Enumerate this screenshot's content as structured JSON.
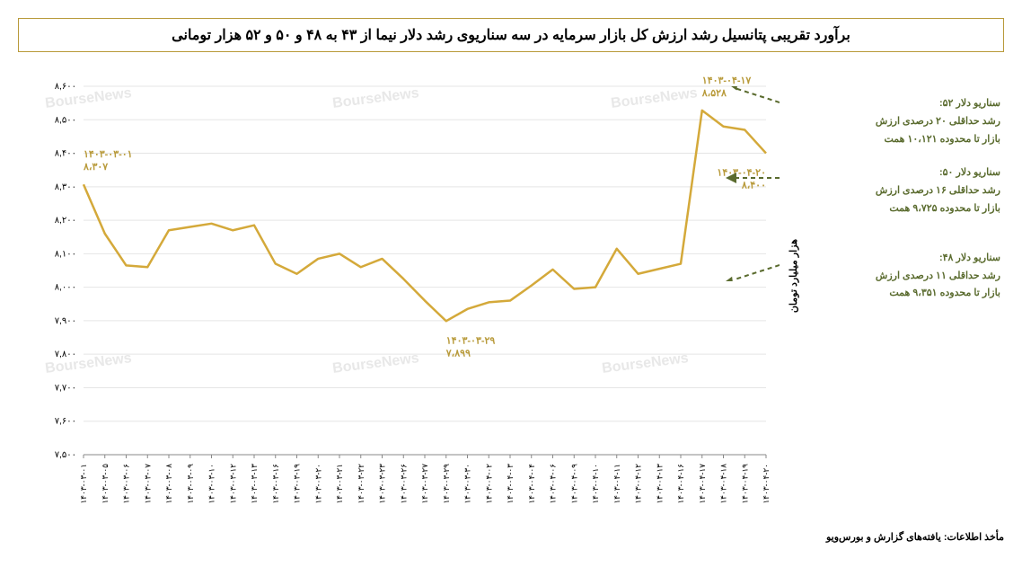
{
  "title": "برآورد تقریبی پتانسیل رشد ارزش کل بازار سرمایه در سه سناریوی رشد دلار نیما از ۴۳ به ۴۸ و ۵۰ و ۵۲ هزار تومانی",
  "y_axis_label": "هزار میلیارد تومان",
  "source_label": "مأخذ اطلاعات: یافته‌های گزارش و بورس‌ویو",
  "watermark": "BourseNews",
  "scenarios": [
    {
      "title": "سناریو دلار ۵۲:",
      "line1": "رشد حداقلی ۲۰ درصدی ارزش",
      "line2": "بازار تا محدوده ۱۰،۱۲۱ همت"
    },
    {
      "title": "سناریو دلار ۵۰:",
      "line1": "رشد حداقلی ۱۶ درصدی ارزش",
      "line2": "بازار تا محدوده ۹،۷۲۵ همت"
    },
    {
      "title": "سناریو دلار ۴۸:",
      "line1": "رشد حداقلی ۱۱ درصدی ارزش",
      "line2": "بازار تا محدوده ۹،۳۵۱ همت"
    }
  ],
  "chart": {
    "type": "line",
    "line_color": "#d4a93a",
    "line_width": 2.5,
    "grid_color": "#e5e5e5",
    "background_color": "#ffffff",
    "ylim": [
      7500,
      8600
    ],
    "ytick_step": 100,
    "x_labels": [
      "۱۴۰۳-۰۳-۰۱",
      "۱۴۰۳-۰۳-۰۵",
      "۱۴۰۳-۰۳-۰۶",
      "۱۴۰۳-۰۳-۰۷",
      "۱۴۰۳-۰۳-۰۸",
      "۱۴۰۳-۰۳-۰۹",
      "۱۴۰۳-۰۳-۱۰",
      "۱۴۰۳-۰۳-۱۲",
      "۱۴۰۳-۰۳-۱۳",
      "۱۴۰۳-۰۳-۱۶",
      "۱۴۰۳-۰۳-۱۹",
      "۱۴۰۳-۰۳-۲۰",
      "۱۴۰۳-۰۳-۲۱",
      "۱۴۰۳-۰۳-۲۲",
      "۱۴۰۳-۰۳-۲۳",
      "۱۴۰۳-۰۳-۲۶",
      "۱۴۰۳-۰۳-۲۷",
      "۱۴۰۳-۰۳-۲۹",
      "۱۴۰۳-۰۳-۳۰",
      "۱۴۰۳-۰۴-۰۲",
      "۱۴۰۳-۰۴-۰۳",
      "۱۴۰۳-۰۴-۰۴",
      "۱۴۰۳-۰۴-۰۶",
      "۱۴۰۳-۰۴-۰۹",
      "۱۴۰۳-۰۴-۱۰",
      "۱۴۰۳-۰۴-۱۱",
      "۱۴۰۳-۰۴-۱۲",
      "۱۴۰۳-۰۴-۱۳",
      "۱۴۰۳-۰۴-۱۶",
      "۱۴۰۳-۰۴-۱۷",
      "۱۴۰۳-۰۴-۱۸",
      "۱۴۰۳-۰۴-۱۹",
      "۱۴۰۳-۰۴-۲۰"
    ],
    "values": [
      8307,
      8160,
      8065,
      8060,
      8170,
      8180,
      8190,
      8170,
      8185,
      8070,
      8040,
      8085,
      8100,
      8060,
      8085,
      8025,
      7960,
      7899,
      7935,
      7955,
      7960,
      8005,
      8053,
      7995,
      8000,
      8115,
      8040,
      8055,
      8070,
      8528,
      8480,
      8470,
      8400
    ],
    "annotations": [
      {
        "index": 0,
        "date": "۱۴۰۳-۰۳-۰۱",
        "value": "۸،۳۰۷",
        "dy": -30
      },
      {
        "index": 17,
        "date": "۱۴۰۳-۰۳-۲۹",
        "value": "۷،۸۹۹",
        "dy": 25
      },
      {
        "index": 29,
        "date": "۱۴۰۳-۰۴-۱۷",
        "value": "۸،۵۲۸",
        "dy": -30
      },
      {
        "index": 32,
        "date": "۱۴۰۳-۰۴-۲۰",
        "value": "۸،۴۰۰",
        "dy": 25
      }
    ],
    "y_tick_labels": [
      "۷,۵۰۰",
      "۷,۶۰۰",
      "۷,۷۰۰",
      "۷,۸۰۰",
      "۷,۹۰۰",
      "۸,۰۰۰",
      "۸,۱۰۰",
      "۸,۲۰۰",
      "۸,۳۰۰",
      "۸,۴۰۰",
      "۸,۵۰۰",
      "۸,۶۰۰"
    ]
  },
  "arrow_color": "#5a6b2e"
}
